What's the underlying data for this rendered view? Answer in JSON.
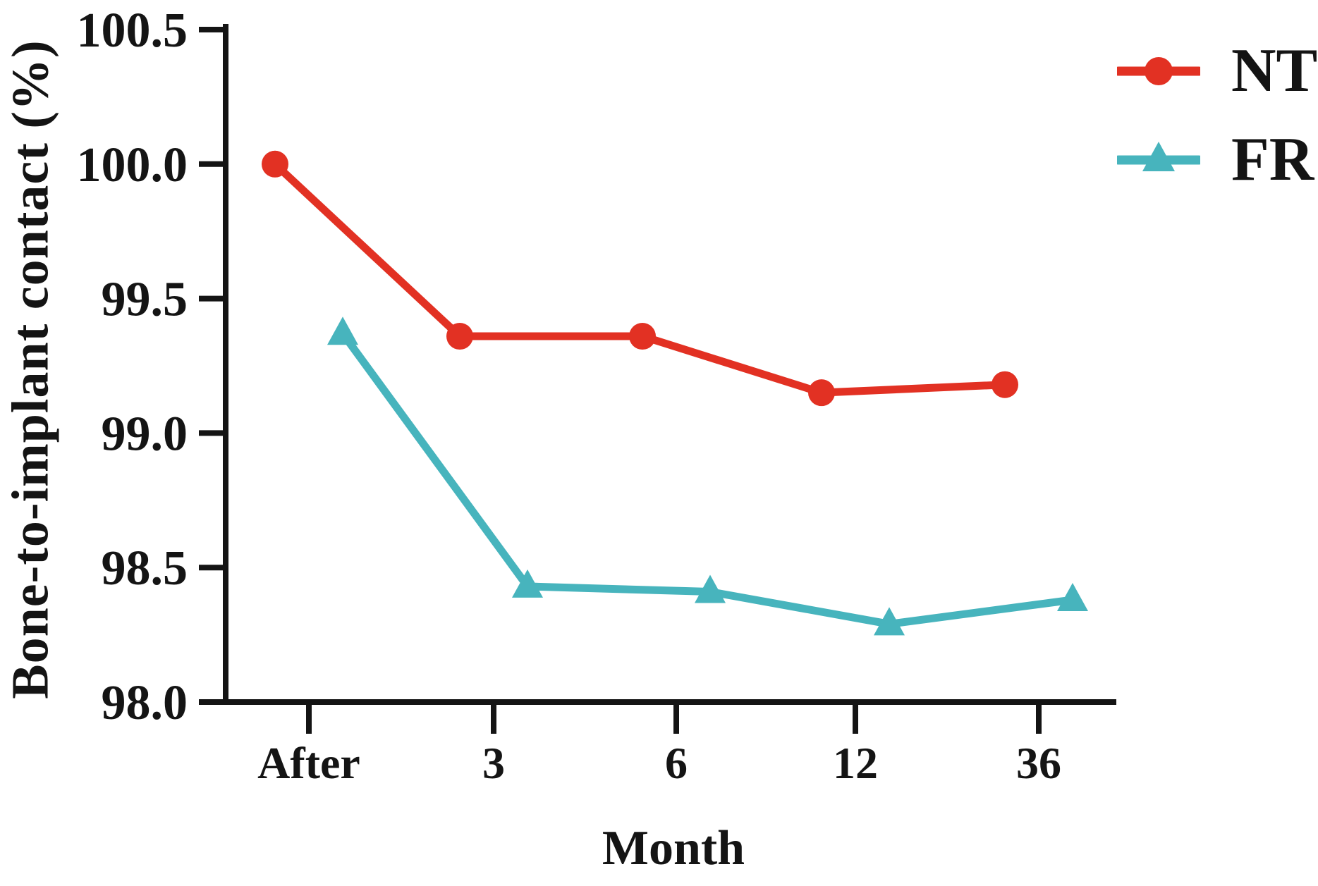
{
  "figure": {
    "background": "#ffffff",
    "ink_color": "#141414"
  },
  "chart_data": {
    "type": "line",
    "title": "",
    "xlabel": "Month",
    "ylabel": "Bone-to-implant contact (%)",
    "categories": [
      "After",
      "3",
      "6",
      "12",
      "36"
    ],
    "ylim": [
      98.0,
      100.5
    ],
    "y_ticks": [
      98.0,
      98.5,
      99.0,
      99.5,
      100.0,
      100.5
    ],
    "y_tick_decimals": 1,
    "grid": false,
    "legend_position": "top-right",
    "axis_color": "#141414",
    "series": [
      {
        "name": "NT",
        "color": "#e23123",
        "marker": "circle",
        "values": [
          100.0,
          99.36,
          99.36,
          99.15,
          99.18
        ]
      },
      {
        "name": "FR",
        "color": "#47b4bd",
        "marker": "triangle-up",
        "values": [
          99.37,
          98.43,
          98.41,
          98.29,
          98.38
        ]
      }
    ]
  }
}
